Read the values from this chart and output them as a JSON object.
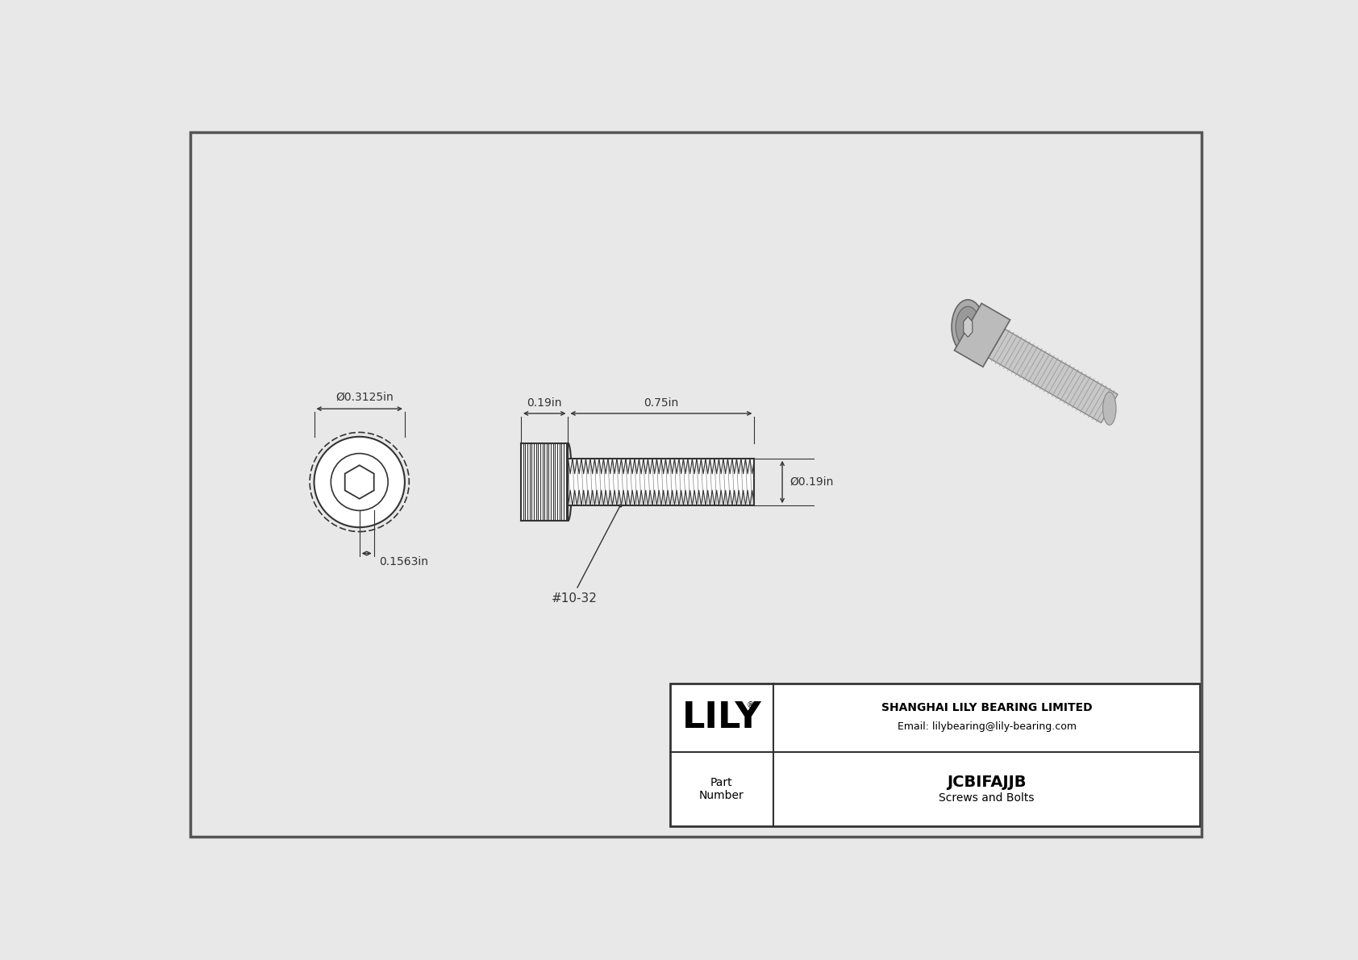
{
  "bg_color": "#e8e8e8",
  "drawing_bg": "#e8e8e8",
  "border_color": "#555555",
  "line_color": "#333333",
  "dim_color": "#333333",
  "title": "JCBIFAJJB",
  "subtitle": "Screws and Bolts",
  "company": "SHANGHAI LILY BEARING LIMITED",
  "email": "Email: lilybearing@lily-bearing.com",
  "part_label": "Part\nNumber",
  "logo": "LILY",
  "dim_head_dia": "Ø0.3125in",
  "dim_head_length": "0.19in",
  "dim_thread_length": "0.75in",
  "dim_thread_dia": "Ø0.19in",
  "dim_hex_size": "0.1563in",
  "thread_spec": "#10-32",
  "font_size_dim": 10,
  "font_size_title": 14,
  "font_size_logo": 32
}
